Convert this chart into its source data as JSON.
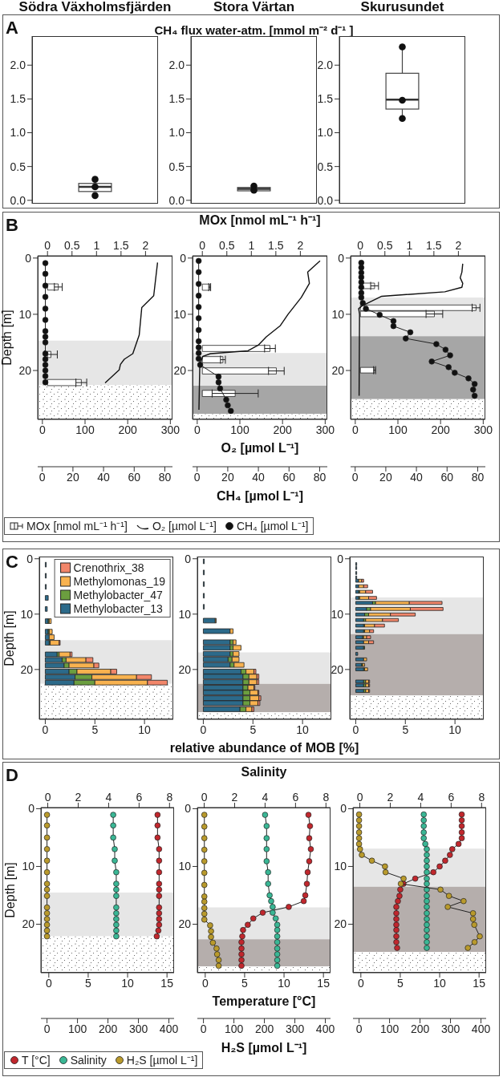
{
  "chart_data": [
    {
      "type": "box",
      "annotations": [
        "A"
      ],
      "categories": [
        "Södra Växholmsfjärden"
      ],
      "boxes": [
        {
          "low": 0.13,
          "q1": 0.13,
          "median": 0.2,
          "q3": 0.25,
          "high": 0.31
        }
      ],
      "series": [
        {
          "type": "scatter",
          "color": "#111111",
          "values": [
            0.31
          ]
        },
        {
          "type": "scatter",
          "color": "#111111",
          "values": [
            0.2
          ]
        },
        {
          "type": "scatter",
          "color": "#111111",
          "values": [
            0.07
          ]
        }
      ],
      "ylim": [
        -0.05,
        2.43
      ],
      "yticks": [
        {
          "value": 0,
          "label": "0.0"
        },
        {
          "value": 0.5,
          "label": "0.5"
        },
        {
          "value": 1,
          "label": "1.0"
        },
        {
          "value": 1.5,
          "label": "1.5"
        },
        {
          "value": 2,
          "label": "2.0"
        }
      ]
    },
    {
      "type": "box",
      "subtitle": "CH₄ flux water-atm. [mmol m⁻² d⁻¹ ]",
      "categories": [
        "Stora Värtan"
      ],
      "boxes": [
        {
          "low": 0.14,
          "q1": 0.14,
          "median": 0.17,
          "q3": 0.19,
          "high": 0.2
        }
      ],
      "series": [
        {
          "type": "scatter",
          "color": "#111111",
          "values": [
            0.21
          ]
        },
        {
          "type": "scatter",
          "color": "#111111",
          "values": [
            0.15
          ]
        }
      ],
      "ylim": [
        -0.05,
        2.43
      ],
      "yticks": [
        {
          "value": 0,
          "label": "0.0"
        },
        {
          "value": 0.5,
          "label": "0.5"
        },
        {
          "value": 1,
          "label": "1.0"
        },
        {
          "value": 1.5,
          "label": "1.5"
        },
        {
          "value": 2,
          "label": "2.0"
        }
      ]
    },
    {
      "type": "box",
      "categories": [
        "Skurusundet"
      ],
      "boxes": [
        {
          "low": 1.21,
          "q1": 1.35,
          "median": 1.49,
          "q3": 1.88,
          "high": 2.27
        }
      ],
      "series": [
        {
          "type": "scatter",
          "color": "#111111",
          "values": [
            2.27
          ]
        },
        {
          "type": "scatter",
          "color": "#111111",
          "values": [
            1.48
          ]
        },
        {
          "type": "scatter",
          "color": "#111111",
          "values": [
            1.21
          ]
        }
      ],
      "ylim": [
        -0.05,
        2.43
      ],
      "yticks": [
        {
          "value": 0,
          "label": "0.0"
        },
        {
          "value": 0.5,
          "label": "0.5"
        },
        {
          "value": 1,
          "label": "1.0"
        },
        {
          "value": 1.5,
          "label": "1.5"
        },
        {
          "value": 2,
          "label": "2.0"
        }
      ]
    },
    {
      "type": "line",
      "orientation": "horizontal",
      "annotations": [
        "B"
      ],
      "ylabel": "Depth [m]",
      "legend": "bottom",
      "series": [
        {
          "name": "MOx [nmol mL⁻¹ h⁻¹]",
          "type": "bar",
          "axis": "x2",
          "color": "#ffffff",
          "x": [
            5.1,
            17.1,
            22.1
          ],
          "values": [
            0.22,
            0.07,
            0.69
          ],
          "errors": [
            0.08,
            0.13,
            0.11
          ]
        },
        {
          "name": "O₂ [µmol L⁻¹]",
          "type": "line",
          "color": "#111111",
          "x": [
            0.8,
            6.7,
            8.8,
            13.7,
            17,
            18,
            18.9,
            19.9,
            22.2
          ],
          "values": [
            270,
            261,
            233,
            227,
            212,
            192,
            183,
            180,
            147
          ]
        }
      ],
      "xlim": [
        -11,
        305
      ],
      "xticks": [
        0,
        100,
        200,
        300
      ],
      "x2lim": [
        -0.2,
        2.55
      ],
      "x2ticks": [
        0,
        0.5,
        1,
        1.5,
        2
      ],
      "ylim": [
        28.7,
        -0.4
      ],
      "yticks": [
        0,
        10,
        20
      ],
      "bands": [
        {
          "axis": "y",
          "from": 14.7,
          "to": 22.6,
          "color": "#e6e6e6"
        },
        {
          "axis": "y",
          "from": 22.6,
          "to": 28.7,
          "color": "#ffffff"
        }
      ]
    },
    {
      "type": "line",
      "orientation": "horizontal",
      "marker": "circle",
      "tick_labels": "x",
      "series": [
        {
          "name": "CH₄ [µmol L⁻¹]",
          "color": "#111111",
          "x": [
            0.9,
            2.8,
            4.9,
            6.9,
            9,
            11,
            13,
            14,
            15,
            17,
            18,
            19,
            20,
            21,
            22.1
          ],
          "values": [
            2,
            2,
            2,
            2,
            2,
            2,
            2,
            2,
            2,
            2,
            2,
            2,
            2,
            2,
            2
          ]
        }
      ],
      "xlim": [
        -3,
        85
      ],
      "xticks": [
        0,
        20,
        40,
        60,
        80
      ],
      "ylim": [
        28.7,
        -0.4
      ]
    },
    {
      "type": "line",
      "orientation": "horizontal",
      "x2label": "MOx [nmol mL⁻¹ h⁻¹]",
      "xlabel": "O₂ [µmol L⁻¹]",
      "series": [
        {
          "type": "bar",
          "axis": "x2",
          "color": "#ffffff",
          "x": [
            5.2,
            16.1,
            18.1,
            20.1,
            24.1
          ],
          "values": [
            0.15,
            1.38,
            0.42,
            1.51,
            0.67
          ],
          "errors": [
            0.02,
            0.11,
            0.05,
            0.16,
            0.47
          ]
        },
        {
          "type": "line",
          "color": "#111111",
          "x": [
            0.5,
            2.5,
            4.5,
            7,
            10,
            12,
            14,
            15.5,
            16.5,
            17,
            17.5,
            19,
            27
          ],
          "values": [
            288,
            259,
            263,
            244,
            213,
            195,
            162,
            143,
            119,
            31,
            13,
            6,
            4
          ]
        }
      ],
      "xlim": [
        -11,
        305
      ],
      "xticks": [
        0,
        100,
        200,
        300
      ],
      "x2lim": [
        -0.2,
        2.55
      ],
      "x2ticks": [
        0,
        0.5,
        1,
        1.5,
        2
      ],
      "ylim": [
        28.7,
        -0.4
      ],
      "yticks": [
        0,
        10,
        20
      ],
      "bands": [
        {
          "axis": "y",
          "from": 16.9,
          "to": 22.7,
          "color": "#e6e6e6"
        },
        {
          "axis": "y",
          "from": 22.7,
          "to": 27.7,
          "color": "#a6a6a6"
        },
        {
          "axis": "y",
          "from": 27.7,
          "to": 28.7,
          "color": "#ffffff"
        }
      ]
    },
    {
      "type": "line",
      "orientation": "horizontal",
      "marker": "circle",
      "tick_labels": "x",
      "xlabel": "CH₄ [µmol L⁻¹]",
      "series": [
        {
          "color": "#111111",
          "x": [
            0.5,
            2.5,
            4.6,
            6.7,
            8.7,
            10.7,
            12.8,
            14.8,
            15.9,
            16.9,
            17.9,
            19,
            21.1,
            22.1,
            23.2,
            25.2,
            26.2,
            27.2
          ],
          "values": [
            1,
            1,
            1,
            1,
            1,
            1,
            1,
            1,
            1,
            1,
            1,
            2,
            14,
            14,
            15,
            19,
            20,
            22
          ]
        }
      ],
      "xlim": [
        -3,
        85
      ],
      "xticks": [
        0,
        20,
        40,
        60,
        80
      ],
      "ylim": [
        28.7,
        -0.4
      ]
    },
    {
      "type": "line",
      "orientation": "horizontal",
      "series": [
        {
          "type": "bar",
          "axis": "x2",
          "color": "#ffffff",
          "x": [
            5,
            8.9,
            10,
            20
          ],
          "values": [
            0.29,
            2.36,
            1.51,
            0.29
          ],
          "errors": [
            0.08,
            0.08,
            0.17,
            0.02
          ]
        },
        {
          "type": "line",
          "color": "#111111",
          "x": [
            1,
            2.5,
            3.5,
            4.5,
            5.2,
            6,
            6.8,
            8.5,
            9,
            10,
            24.5
          ],
          "values": [
            252,
            250,
            246,
            252,
            250,
            210,
            62,
            16,
            8,
            10,
            9
          ]
        }
      ],
      "xlim": [
        -11,
        305
      ],
      "xticks": [
        0,
        100,
        200,
        300
      ],
      "x2lim": [
        -0.2,
        2.55
      ],
      "x2ticks": [
        0,
        0.5,
        1,
        1.5,
        2
      ],
      "ylim": [
        28.7,
        -0.4
      ],
      "yticks": [
        0,
        10,
        20
      ],
      "bands": [
        {
          "axis": "y",
          "from": 7,
          "to": 13.9,
          "color": "#e6e6e6"
        },
        {
          "axis": "y",
          "from": 13.9,
          "to": 25.1,
          "color": "#a6a6a6"
        },
        {
          "axis": "y",
          "from": 25.1,
          "to": 28.7,
          "color": "#ffffff"
        }
      ]
    },
    {
      "type": "line",
      "orientation": "horizontal",
      "marker": "circle",
      "tick_labels": "x",
      "series": [
        {
          "color": "#111111",
          "x": [
            0.85,
            1.7,
            2.6,
            3.4,
            4.3,
            5.2,
            6.2,
            7,
            8,
            9,
            10.1,
            11.2,
            12.1,
            13.2,
            14.3,
            15.3,
            16.3,
            17.3,
            18.4,
            19.4,
            20.4,
            21.4,
            22.4,
            23.4,
            24.5
          ],
          "values": [
            4,
            4,
            4,
            4,
            4,
            4,
            4,
            4,
            5,
            7,
            16,
            25,
            25,
            36,
            33,
            53,
            59,
            62,
            50,
            61,
            65,
            74,
            78,
            77,
            78
          ]
        }
      ],
      "xlim": [
        -3,
        85
      ],
      "xticks": [
        0,
        20,
        40,
        60,
        80
      ],
      "ylim": [
        28.7,
        -0.4
      ]
    },
    {
      "type": "bar",
      "orientation": "horizontal",
      "stacked": true,
      "annotations": [
        "C"
      ],
      "ylabel": "Depth [m]",
      "legend": "top right",
      "series": [
        {
          "name": "Methylobacter_13",
          "color": "#2c6a8a",
          "x": [
            1,
            3,
            5,
            7,
            9,
            11.2,
            13.1,
            14.1,
            15.1,
            17.2,
            18.2,
            19.2,
            20.3,
            21.3,
            22.3
          ],
          "values": [
            0.1,
            0.1,
            0.1,
            0.3,
            0.2,
            0.3,
            0.3,
            0.4,
            0.4,
            1.2,
            1.7,
            1.9,
            2.4,
            3.0,
            2.9
          ]
        },
        {
          "name": "Methylobacter_47",
          "color": "#6b9e3f",
          "x": [
            1,
            3,
            5,
            7,
            9,
            11.2,
            13.1,
            14.1,
            15.1,
            17.2,
            18.2,
            19.2,
            20.3,
            21.3,
            22.3
          ],
          "values": [
            0,
            0,
            0,
            0,
            0,
            0.1,
            0.1,
            0,
            0.1,
            0.2,
            0.4,
            0.5,
            0.8,
            1.7,
            2.1
          ]
        },
        {
          "name": "Methylomonas_19",
          "color": "#f8b24f",
          "x": [
            1,
            3,
            5,
            7,
            9,
            11.2,
            13.1,
            14.1,
            15.1,
            17.2,
            18.2,
            19.2,
            20.3,
            21.3,
            22.3
          ],
          "values": [
            0,
            0,
            0,
            0,
            0,
            0.2,
            0.3,
            0.5,
            0.9,
            1.1,
            2.0,
            2.5,
            3.4,
            4.5,
            5.3
          ]
        },
        {
          "name": "Crenothrix_38",
          "color": "#f2866a",
          "x": [
            1,
            3,
            5,
            7,
            9,
            11.2,
            13.1,
            14.1,
            15.1,
            17.2,
            18.2,
            19.2,
            20.3,
            21.3,
            22.3
          ],
          "values": [
            0,
            0,
            0,
            0,
            0,
            0,
            0,
            0,
            0.1,
            0.2,
            0.7,
            0.5,
            0.6,
            1.5,
            2.0
          ]
        }
      ],
      "xlim": [
        -0.6,
        12.9
      ],
      "xticks": [
        0,
        5,
        10
      ],
      "ylim": [
        29,
        -0.4
      ],
      "yticks": [
        0,
        10,
        20
      ],
      "bands": [
        {
          "axis": "y",
          "from": 14.7,
          "to": 22.6,
          "color": "#e6e6e6"
        },
        {
          "axis": "y",
          "from": 22.6,
          "to": 29,
          "color": "#ffffff"
        }
      ]
    },
    {
      "type": "bar",
      "orientation": "horizontal",
      "stacked": true,
      "xlabel": "relative abundance of MOB [%]",
      "series": [
        {
          "color": "#2c6a8a",
          "x": [
            0.5,
            2.5,
            4.6,
            6.7,
            8.7,
            11.2,
            13.1,
            15.1,
            16.1,
            17.2,
            18.2,
            19.2,
            20.4,
            21.3,
            22.3,
            23.3,
            24.2,
            25.2,
            26.1,
            27.2
          ],
          "values": [
            0.1,
            0.1,
            0.1,
            0.1,
            0.1,
            1.2,
            2.7,
            2.7,
            2.7,
            2.7,
            2.5,
            2.7,
            3.8,
            4.0,
            4.0,
            4.0,
            4.0,
            4.0,
            4.0,
            3.7
          ]
        },
        {
          "color": "#6b9e3f",
          "x": [
            0.5,
            2.5,
            4.6,
            6.7,
            8.7,
            11.2,
            13.1,
            15.1,
            16.1,
            17.2,
            18.2,
            19.2,
            20.4,
            21.3,
            22.3,
            23.3,
            24.2,
            25.2,
            26.1,
            27.2
          ],
          "values": [
            0,
            0,
            0,
            0,
            0,
            0,
            0,
            0.3,
            0.3,
            0.3,
            0.4,
            0.4,
            0.5,
            0.6,
            0.6,
            0.5,
            0.7,
            0.7,
            0.7,
            0.6
          ]
        },
        {
          "color": "#f8b24f",
          "x": [
            0.5,
            2.5,
            4.6,
            6.7,
            8.7,
            11.2,
            13.1,
            15.1,
            16.1,
            17.2,
            18.2,
            19.2,
            20.4,
            21.3,
            22.3,
            23.3,
            24.2,
            25.2,
            26.1,
            27.2
          ],
          "values": [
            0,
            0,
            0,
            0,
            0,
            0.1,
            0.3,
            0.3,
            0.8,
            0.6,
            0.7,
            1.0,
            0.8,
            0.8,
            0.8,
            0.6,
            0.8,
            0.9,
            0.8,
            0.6
          ]
        },
        {
          "color": "#f2866a",
          "x": [
            0.5,
            2.5,
            4.6,
            6.7,
            8.7,
            11.2,
            13.1,
            15.1,
            16.1,
            17.2,
            18.2,
            19.2,
            20.4,
            21.3,
            22.3,
            23.3,
            24.2,
            25.2,
            26.1,
            27.2
          ],
          "values": [
            0,
            0,
            0,
            0,
            0,
            0,
            0,
            0,
            0,
            0,
            0,
            0,
            0.2,
            0.2,
            0.2,
            0.1,
            0.1,
            0.2,
            0.2,
            0.2
          ]
        }
      ],
      "xlim": [
        -0.6,
        12.9
      ],
      "xticks": [
        0,
        5,
        10
      ],
      "ylim": [
        29,
        -0.4
      ],
      "yticks": [
        0,
        10,
        20
      ],
      "bands": [
        {
          "axis": "y",
          "from": 16.9,
          "to": 22.6,
          "color": "#e6e6e6"
        },
        {
          "axis": "y",
          "from": 22.6,
          "to": 27.7,
          "color": "#b5aeac"
        },
        {
          "axis": "y",
          "from": 27.7,
          "to": 29,
          "color": "#ffffff"
        }
      ]
    },
    {
      "type": "bar",
      "orientation": "horizontal",
      "stacked": true,
      "series": [
        {
          "color": "#2c6a8a",
          "x": [
            1,
            1.7,
            2.6,
            3.4,
            4,
            5,
            6,
            7.1,
            8,
            9.1,
            10.1,
            11.1,
            12.1,
            13.1,
            14.2,
            15.1,
            16.1,
            17.2,
            18.2,
            19.2,
            20,
            22.2,
            22.9,
            23.9
          ],
          "values": [
            0.1,
            0.1,
            0.1,
            0.1,
            0.3,
            0.3,
            0.3,
            0.3,
            1.7,
            1.1,
            0.9,
            0.8,
            0.8,
            0.8,
            0.7,
            0.8,
            0.8,
            0.2,
            0.8,
            0.6,
            0.8,
            0.8,
            0.8,
            0.8
          ]
        },
        {
          "color": "#6b9e3f",
          "x": [
            1,
            1.7,
            2.6,
            3.4,
            4,
            5,
            6,
            7.1,
            8,
            9.1,
            10.1,
            11.1,
            12.1,
            13.1,
            14.2,
            15.1,
            16.1,
            17.2,
            18.2,
            19.2,
            20,
            22.2,
            22.9,
            23.9
          ],
          "values": [
            0,
            0,
            0,
            0,
            0,
            0,
            0.1,
            0.1,
            0.3,
            0.4,
            0.4,
            0.2,
            0.1,
            0.1,
            0.1,
            0,
            0.1,
            0,
            0,
            0.1,
            0.1,
            0.2,
            0.2,
            0.2
          ]
        },
        {
          "color": "#f8b24f",
          "x": [
            1,
            1.7,
            2.6,
            3.4,
            4,
            5,
            6,
            7.1,
            8,
            9.1,
            10.1,
            11.1,
            12.1,
            13.1,
            14.2,
            15.1,
            16.1,
            17.2,
            18.2,
            19.2,
            20,
            22.2,
            22.9,
            23.9
          ],
          "values": [
            0,
            0,
            0,
            0,
            0.3,
            0.5,
            0.6,
            0.9,
            3.4,
            4.0,
            2.2,
            1.7,
            1.0,
            0.5,
            0.3,
            0.5,
            0,
            0,
            0.3,
            0.2,
            0.3,
            0.3,
            0.3,
            0.3
          ]
        },
        {
          "color": "#f2866a",
          "x": [
            1,
            1.7,
            2.6,
            3.4,
            4,
            5,
            6,
            7.1,
            8,
            9.1,
            10.1,
            11.1,
            12.1,
            13.1,
            14.2,
            15.1,
            16.1,
            17.2,
            18.2,
            19.2,
            20,
            22.2,
            22.9,
            23.9
          ],
          "values": [
            0,
            0,
            0,
            0,
            0.2,
            0.4,
            0.7,
            0.8,
            3.3,
            3.3,
            2.5,
            1.6,
            1.0,
            0.4,
            0.4,
            0.5,
            0,
            0,
            0,
            0,
            0,
            0.1,
            0.1,
            0.1
          ]
        }
      ],
      "xlim": [
        -0.6,
        12.9
      ],
      "xticks": [
        0,
        5,
        10
      ],
      "ylim": [
        29,
        -0.4
      ],
      "yticks": [
        0,
        10,
        20
      ],
      "bands": [
        {
          "axis": "y",
          "from": 7,
          "to": 13.6,
          "color": "#e6e6e6"
        },
        {
          "axis": "y",
          "from": 13.6,
          "to": 24.7,
          "color": "#b5aeac"
        },
        {
          "axis": "y",
          "from": 24.7,
          "to": 29,
          "color": "#ffffff"
        }
      ]
    },
    {
      "type": "line",
      "orientation": "horizontal",
      "marker": "circle",
      "annotations": [
        "D"
      ],
      "ylabel": "Depth [m]",
      "legend": "bottom",
      "series": [
        {
          "name": "T [°C]",
          "color": "#c1272d",
          "x": [
            1.06,
            2.9,
            5,
            7,
            9,
            11,
            13,
            14,
            15.1,
            17.1,
            18.1,
            19.1,
            20.1,
            21.1,
            22.1
          ],
          "values": [
            13.8,
            13.8,
            13.8,
            14,
            14,
            14,
            14,
            14,
            14,
            14,
            14,
            14,
            14,
            13.9,
            13.7
          ]
        },
        {
          "name": "Salinity",
          "axis": "x2",
          "color": "#3ab795",
          "x": [
            1.06,
            2.9,
            5,
            7,
            9,
            11,
            13,
            14,
            15.1,
            17.1,
            18.1,
            19.1,
            20.1,
            21.1,
            22.1
          ],
          "values": [
            4.3,
            4.3,
            4.3,
            4.4,
            4.4,
            4.5,
            4.5,
            4.5,
            4.5,
            4.5,
            4.5,
            4.5,
            4.5,
            4.5,
            4.5
          ]
        }
      ],
      "xlim": [
        -1,
        15.9
      ],
      "xticks": [
        0,
        5,
        10,
        15
      ],
      "x2lim": [
        -0.45,
        8.3
      ],
      "x2ticks": [
        0,
        2,
        4,
        6,
        8
      ],
      "ylim": [
        28.4,
        -0.2
      ],
      "yticks": [
        0,
        10,
        20
      ],
      "bands": [
        {
          "axis": "y",
          "from": 14.5,
          "to": 22.1,
          "color": "#e6e6e6"
        },
        {
          "axis": "y",
          "from": 22.1,
          "to": 28.4,
          "color": "#ffffff"
        }
      ]
    },
    {
      "type": "line",
      "orientation": "horizontal",
      "marker": "circle",
      "tick_labels": "x",
      "series": [
        {
          "name": "H₂S [µmol L⁻¹]",
          "color": "#b99a2c",
          "x": [
            1.06,
            2.9,
            5,
            7,
            9,
            11,
            13,
            14,
            15.1,
            17.1,
            18.1,
            19.1,
            20.1,
            21.1,
            22.1
          ],
          "values": [
            0,
            0,
            0,
            0,
            0,
            0,
            0,
            0,
            0,
            0,
            0,
            0,
            0,
            0,
            0
          ]
        }
      ],
      "xlim": [
        -20,
        417
      ],
      "xticks": [
        0,
        100,
        200,
        300,
        400
      ],
      "ylim": [
        28.4,
        -0.2
      ]
    },
    {
      "type": "line",
      "orientation": "horizontal",
      "marker": "circle",
      "x2label": "Salinity",
      "xlabel": "Temperature [°C]",
      "series": [
        {
          "color": "#c1272d",
          "x": [
            1.06,
            3,
            5.1,
            7,
            9.1,
            11,
            13,
            15,
            16,
            17,
            18,
            19,
            20.1,
            21,
            22.1,
            23.1,
            24.2,
            25.2,
            26.2,
            27.2
          ],
          "values": [
            13.1,
            13.3,
            13.2,
            13.4,
            13.2,
            13,
            12.9,
            12.7,
            12.5,
            10.6,
            7.3,
            6.1,
            5.4,
            4.8,
            4.7,
            4.6,
            4.6,
            4.6,
            4.6,
            4.6
          ]
        },
        {
          "axis": "x2",
          "color": "#3ab795",
          "x": [
            1.06,
            3,
            5.1,
            7,
            9.1,
            11,
            13,
            15,
            16,
            17,
            18,
            19,
            20.1,
            21,
            22.1,
            23.1,
            24.2,
            25.2,
            26.2,
            27.2
          ],
          "values": [
            4.0,
            4.1,
            4.1,
            4.1,
            4.1,
            4.2,
            4.2,
            4.3,
            4.4,
            4.5,
            4.5,
            4.7,
            4.8,
            4.8,
            4.8,
            4.8,
            4.8,
            4.8,
            4.8,
            4.8
          ]
        }
      ],
      "xlim": [
        -1,
        15.9
      ],
      "xticks": [
        0,
        5,
        10,
        15
      ],
      "x2lim": [
        -0.45,
        8.3
      ],
      "x2ticks": [
        0,
        2,
        4,
        6,
        8
      ],
      "ylim": [
        28.4,
        -0.2
      ],
      "yticks": [
        0,
        10,
        20
      ],
      "bands": [
        {
          "axis": "y",
          "from": 17.1,
          "to": 22.6,
          "color": "#e6e6e6"
        },
        {
          "axis": "y",
          "from": 22.6,
          "to": 27.3,
          "color": "#b5aeac"
        },
        {
          "axis": "y",
          "from": 27.3,
          "to": 28.4,
          "color": "#ffffff"
        }
      ]
    },
    {
      "type": "line",
      "orientation": "horizontal",
      "marker": "circle",
      "tick_labels": "x",
      "xlabel": "H₂S [µmol L⁻¹]",
      "series": [
        {
          "color": "#b99a2c",
          "x": [
            1.06,
            3.1,
            5.1,
            7.1,
            9.1,
            11.1,
            13.2,
            15.2,
            16.1,
            17.2,
            18.2,
            19.2,
            20.2,
            21.2,
            22.2,
            23.2,
            24.2,
            25.2,
            26.2,
            27.2
          ],
          "values": [
            3,
            3,
            3,
            3,
            3,
            3,
            3,
            3,
            3,
            3,
            3,
            3,
            22,
            25,
            25,
            31,
            43,
            45,
            50,
            50
          ]
        }
      ],
      "xlim": [
        -20,
        417
      ],
      "xticks": [
        0,
        100,
        200,
        300,
        400
      ],
      "ylim": [
        28.4,
        -0.2
      ]
    },
    {
      "type": "line",
      "orientation": "horizontal",
      "marker": "circle",
      "series": [
        {
          "color": "#c1272d",
          "x": [
            1,
            2,
            3,
            4.1,
            5.1,
            6.1,
            7,
            8,
            9,
            10,
            11,
            12.1,
            13,
            14,
            15.1,
            16,
            17,
            18.1,
            19.1,
            20.1,
            21,
            22.1,
            23.1,
            24.1
          ],
          "values": [
            12.8,
            12.8,
            12.8,
            12.8,
            12.8,
            12.4,
            11.6,
            11.3,
            10.7,
            10,
            9.2,
            6.9,
            5.4,
            5,
            4.9,
            4.7,
            4.5,
            4.5,
            4.5,
            4.5,
            4.5,
            4.5,
            4.5,
            4.6
          ]
        },
        {
          "axis": "x2",
          "color": "#3ab795",
          "x": [
            1,
            2,
            3,
            4.1,
            5.1,
            6.1,
            7,
            8,
            9,
            10,
            11,
            12.1,
            13,
            14,
            15.1,
            16,
            17,
            18.1,
            19.1,
            20.1,
            21,
            22.1,
            23.1,
            24.1
          ],
          "values": [
            4.2,
            4.2,
            4.2,
            4.2,
            4.2,
            4.3,
            4.4,
            4.4,
            4.4,
            4.4,
            4.4,
            4.4,
            4.4,
            4.4,
            4.4,
            4.4,
            4.4,
            4.4,
            4.4,
            4.4,
            4.4,
            4.4,
            4.4,
            4.4
          ]
        }
      ],
      "xlim": [
        -1,
        15.9
      ],
      "xticks": [
        0,
        5,
        10,
        15
      ],
      "x2lim": [
        -0.45,
        8.3
      ],
      "x2ticks": [
        0,
        2,
        4,
        6,
        8
      ],
      "ylim": [
        28.4,
        -0.2
      ],
      "yticks": [
        0,
        10,
        20
      ],
      "bands": [
        {
          "axis": "y",
          "from": 6.9,
          "to": 13.5,
          "color": "#e6e6e6"
        },
        {
          "axis": "y",
          "from": 13.5,
          "to": 24.8,
          "color": "#b5aeac"
        },
        {
          "axis": "y",
          "from": 24.8,
          "to": 28.4,
          "color": "#ffffff"
        }
      ]
    },
    {
      "type": "line",
      "orientation": "horizontal",
      "marker": "circle",
      "tick_labels": "x",
      "series": [
        {
          "color": "#b99a2c",
          "x": [
            1,
            2,
            3,
            4.1,
            5.1,
            6.1,
            7,
            8,
            9,
            10,
            11,
            12.1,
            13,
            14,
            15.1,
            16,
            17,
            18.1,
            19.1,
            20.1,
            22.1,
            23.1,
            24.1
          ],
          "values": [
            0,
            0,
            0,
            0,
            0,
            0,
            3,
            9,
            42,
            85,
            87,
            146,
            137,
            267,
            295,
            343,
            291,
            374,
            374,
            378,
            396,
            379,
            357
          ]
        }
      ],
      "xlim": [
        -20,
        417
      ],
      "xticks": [
        0,
        100,
        200,
        300,
        400
      ],
      "ylim": [
        28.4,
        -0.2
      ]
    }
  ]
}
